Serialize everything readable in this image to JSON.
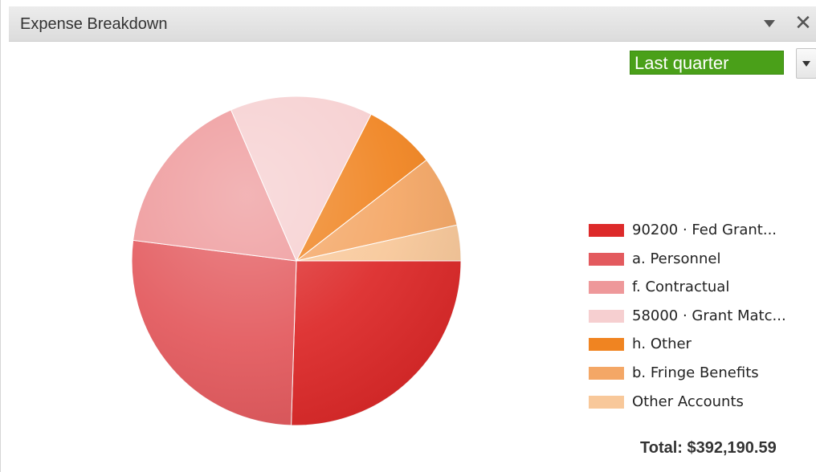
{
  "widget": {
    "title": "Expense Breakdown",
    "period": "Last quarter",
    "total": "Total: $392,190.59"
  },
  "chart_data": {
    "type": "pie",
    "title": "",
    "slices": [
      {
        "label": "90200 · Fed Grant...",
        "percent": 25.5,
        "color": "#dd2a2a"
      },
      {
        "label": "a. Personnel",
        "percent": 26.5,
        "color": "#e35a5e"
      },
      {
        "label": "f. Contractual",
        "percent": 16.5,
        "color": "#ee989a"
      },
      {
        "label": "58000 · Grant Matc...",
        "percent": 14.0,
        "color": "#f6cfd0"
      },
      {
        "label": "h. Other",
        "percent": 7.0,
        "color": "#f08421"
      },
      {
        "label": "b. Fringe Benefits",
        "percent": 7.0,
        "color": "#f4a766"
      },
      {
        "label": "Other Accounts",
        "percent": 3.5,
        "color": "#f8c89a"
      }
    ],
    "start_angle_deg": 0,
    "direction": "clockwise",
    "legend_position": "right"
  }
}
